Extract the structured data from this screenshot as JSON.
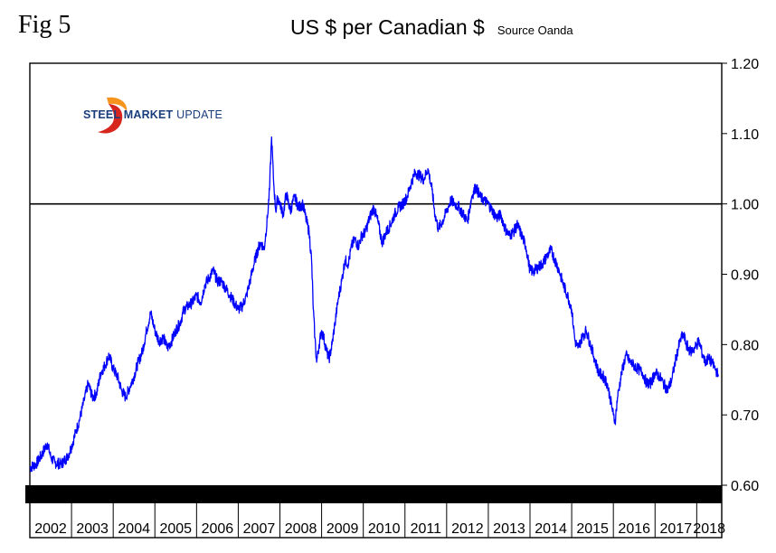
{
  "header": {
    "fig_label": "Fig 5",
    "title": "US $ per Canadian $",
    "source": "Source Oanda"
  },
  "logo": {
    "text_bold": "STEEL MARKET",
    "text_light": "UPDATE",
    "colors": {
      "swoosh_red": "#d7261e",
      "swoosh_orange": "#f7941d",
      "text": "#1a3d7c"
    }
  },
  "chart_data": {
    "type": "line",
    "title": "US $ per Canadian $",
    "xlabel": "",
    "ylabel": "",
    "ylim": [
      0.6,
      1.2
    ],
    "xlim": [
      2002.0,
      2018.6
    ],
    "y_ticks": [
      "0.60",
      "0.70",
      "0.80",
      "0.90",
      "1.00",
      "1.10",
      "1.20"
    ],
    "y_axis_side": "right",
    "x_tick_labels": [
      "2002",
      "2003",
      "2004",
      "2005",
      "2006",
      "2007",
      "2008",
      "2009",
      "2010",
      "2011",
      "2012",
      "2013",
      "2014",
      "2015",
      "2016",
      "2017",
      "2018"
    ],
    "reference_line": {
      "y": 1.0,
      "color": "#000000"
    },
    "grid": false,
    "legend": "none",
    "series": [
      {
        "color": "#0000ff",
        "points": [
          [
            2002.0,
            0.625
          ],
          [
            2002.15,
            0.63
          ],
          [
            2002.3,
            0.645
          ],
          [
            2002.42,
            0.66
          ],
          [
            2002.5,
            0.64
          ],
          [
            2002.6,
            0.632
          ],
          [
            2002.75,
            0.63
          ],
          [
            2002.9,
            0.64
          ],
          [
            2003.0,
            0.655
          ],
          [
            2003.1,
            0.675
          ],
          [
            2003.2,
            0.695
          ],
          [
            2003.3,
            0.72
          ],
          [
            2003.4,
            0.745
          ],
          [
            2003.5,
            0.725
          ],
          [
            2003.6,
            0.73
          ],
          [
            2003.7,
            0.76
          ],
          [
            2003.8,
            0.77
          ],
          [
            2003.9,
            0.785
          ],
          [
            2004.0,
            0.765
          ],
          [
            2004.1,
            0.755
          ],
          [
            2004.2,
            0.735
          ],
          [
            2004.3,
            0.725
          ],
          [
            2004.4,
            0.74
          ],
          [
            2004.5,
            0.755
          ],
          [
            2004.6,
            0.775
          ],
          [
            2004.7,
            0.79
          ],
          [
            2004.8,
            0.82
          ],
          [
            2004.9,
            0.845
          ],
          [
            2005.0,
            0.82
          ],
          [
            2005.1,
            0.805
          ],
          [
            2005.2,
            0.81
          ],
          [
            2005.3,
            0.795
          ],
          [
            2005.4,
            0.805
          ],
          [
            2005.5,
            0.82
          ],
          [
            2005.6,
            0.83
          ],
          [
            2005.7,
            0.85
          ],
          [
            2005.8,
            0.855
          ],
          [
            2005.9,
            0.86
          ],
          [
            2006.0,
            0.87
          ],
          [
            2006.1,
            0.86
          ],
          [
            2006.2,
            0.885
          ],
          [
            2006.3,
            0.895
          ],
          [
            2006.4,
            0.905
          ],
          [
            2006.5,
            0.89
          ],
          [
            2006.6,
            0.89
          ],
          [
            2006.7,
            0.88
          ],
          [
            2006.8,
            0.87
          ],
          [
            2006.9,
            0.86
          ],
          [
            2007.0,
            0.85
          ],
          [
            2007.1,
            0.855
          ],
          [
            2007.2,
            0.87
          ],
          [
            2007.3,
            0.895
          ],
          [
            2007.4,
            0.92
          ],
          [
            2007.5,
            0.94
          ],
          [
            2007.55,
            0.945
          ],
          [
            2007.62,
            0.935
          ],
          [
            2007.7,
            0.98
          ],
          [
            2007.75,
            1.02
          ],
          [
            2007.8,
            1.095
          ],
          [
            2007.85,
            1.03
          ],
          [
            2007.9,
            0.99
          ],
          [
            2007.95,
            1.01
          ],
          [
            2008.0,
            1.0
          ],
          [
            2008.08,
            0.985
          ],
          [
            2008.15,
            1.015
          ],
          [
            2008.25,
            0.99
          ],
          [
            2008.35,
            1.01
          ],
          [
            2008.45,
            0.995
          ],
          [
            2008.55,
            1.0
          ],
          [
            2008.62,
            0.98
          ],
          [
            2008.7,
            0.96
          ],
          [
            2008.76,
            0.92
          ],
          [
            2008.8,
            0.85
          ],
          [
            2008.84,
            0.81
          ],
          [
            2008.88,
            0.775
          ],
          [
            2008.94,
            0.8
          ],
          [
            2009.0,
            0.82
          ],
          [
            2009.05,
            0.81
          ],
          [
            2009.12,
            0.79
          ],
          [
            2009.18,
            0.78
          ],
          [
            2009.25,
            0.8
          ],
          [
            2009.32,
            0.83
          ],
          [
            2009.4,
            0.865
          ],
          [
            2009.48,
            0.89
          ],
          [
            2009.56,
            0.92
          ],
          [
            2009.64,
            0.915
          ],
          [
            2009.72,
            0.94
          ],
          [
            2009.8,
            0.95
          ],
          [
            2009.88,
            0.94
          ],
          [
            2009.96,
            0.955
          ],
          [
            2010.05,
            0.96
          ],
          [
            2010.15,
            0.98
          ],
          [
            2010.25,
            0.995
          ],
          [
            2010.35,
            0.975
          ],
          [
            2010.45,
            0.945
          ],
          [
            2010.55,
            0.96
          ],
          [
            2010.65,
            0.97
          ],
          [
            2010.75,
            0.985
          ],
          [
            2010.85,
            0.995
          ],
          [
            2010.95,
            1.0
          ],
          [
            2011.05,
            1.01
          ],
          [
            2011.15,
            1.03
          ],
          [
            2011.25,
            1.045
          ],
          [
            2011.35,
            1.04
          ],
          [
            2011.45,
            1.035
          ],
          [
            2011.55,
            1.05
          ],
          [
            2011.65,
            1.02
          ],
          [
            2011.72,
            0.985
          ],
          [
            2011.8,
            0.965
          ],
          [
            2011.9,
            0.975
          ],
          [
            2012.0,
            0.99
          ],
          [
            2012.1,
            1.005
          ],
          [
            2012.2,
            1.0
          ],
          [
            2012.3,
            0.995
          ],
          [
            2012.4,
            0.985
          ],
          [
            2012.5,
            0.975
          ],
          [
            2012.6,
            1.01
          ],
          [
            2012.7,
            1.025
          ],
          [
            2012.8,
            1.01
          ],
          [
            2012.9,
            1.005
          ],
          [
            2013.0,
            1.0
          ],
          [
            2013.1,
            0.99
          ],
          [
            2013.2,
            0.98
          ],
          [
            2013.3,
            0.985
          ],
          [
            2013.4,
            0.965
          ],
          [
            2013.5,
            0.955
          ],
          [
            2013.6,
            0.96
          ],
          [
            2013.7,
            0.97
          ],
          [
            2013.8,
            0.955
          ],
          [
            2013.9,
            0.94
          ],
          [
            2014.0,
            0.905
          ],
          [
            2014.1,
            0.905
          ],
          [
            2014.2,
            0.91
          ],
          [
            2014.3,
            0.915
          ],
          [
            2014.4,
            0.925
          ],
          [
            2014.5,
            0.935
          ],
          [
            2014.6,
            0.92
          ],
          [
            2014.7,
            0.905
          ],
          [
            2014.8,
            0.885
          ],
          [
            2014.9,
            0.87
          ],
          [
            2015.0,
            0.85
          ],
          [
            2015.08,
            0.805
          ],
          [
            2015.15,
            0.795
          ],
          [
            2015.25,
            0.81
          ],
          [
            2015.35,
            0.82
          ],
          [
            2015.45,
            0.8
          ],
          [
            2015.55,
            0.78
          ],
          [
            2015.65,
            0.76
          ],
          [
            2015.75,
            0.755
          ],
          [
            2015.85,
            0.745
          ],
          [
            2015.92,
            0.725
          ],
          [
            2016.0,
            0.7
          ],
          [
            2016.04,
            0.69
          ],
          [
            2016.1,
            0.725
          ],
          [
            2016.2,
            0.76
          ],
          [
            2016.3,
            0.785
          ],
          [
            2016.4,
            0.775
          ],
          [
            2016.5,
            0.77
          ],
          [
            2016.6,
            0.765
          ],
          [
            2016.7,
            0.76
          ],
          [
            2016.8,
            0.745
          ],
          [
            2016.9,
            0.745
          ],
          [
            2017.0,
            0.76
          ],
          [
            2017.1,
            0.755
          ],
          [
            2017.2,
            0.745
          ],
          [
            2017.3,
            0.735
          ],
          [
            2017.4,
            0.75
          ],
          [
            2017.5,
            0.78
          ],
          [
            2017.6,
            0.805
          ],
          [
            2017.68,
            0.815
          ],
          [
            2017.75,
            0.8
          ],
          [
            2017.85,
            0.79
          ],
          [
            2017.95,
            0.795
          ],
          [
            2018.05,
            0.805
          ],
          [
            2018.12,
            0.79
          ],
          [
            2018.2,
            0.775
          ],
          [
            2018.28,
            0.78
          ],
          [
            2018.36,
            0.775
          ],
          [
            2018.45,
            0.765
          ],
          [
            2018.52,
            0.755
          ]
        ]
      }
    ]
  }
}
